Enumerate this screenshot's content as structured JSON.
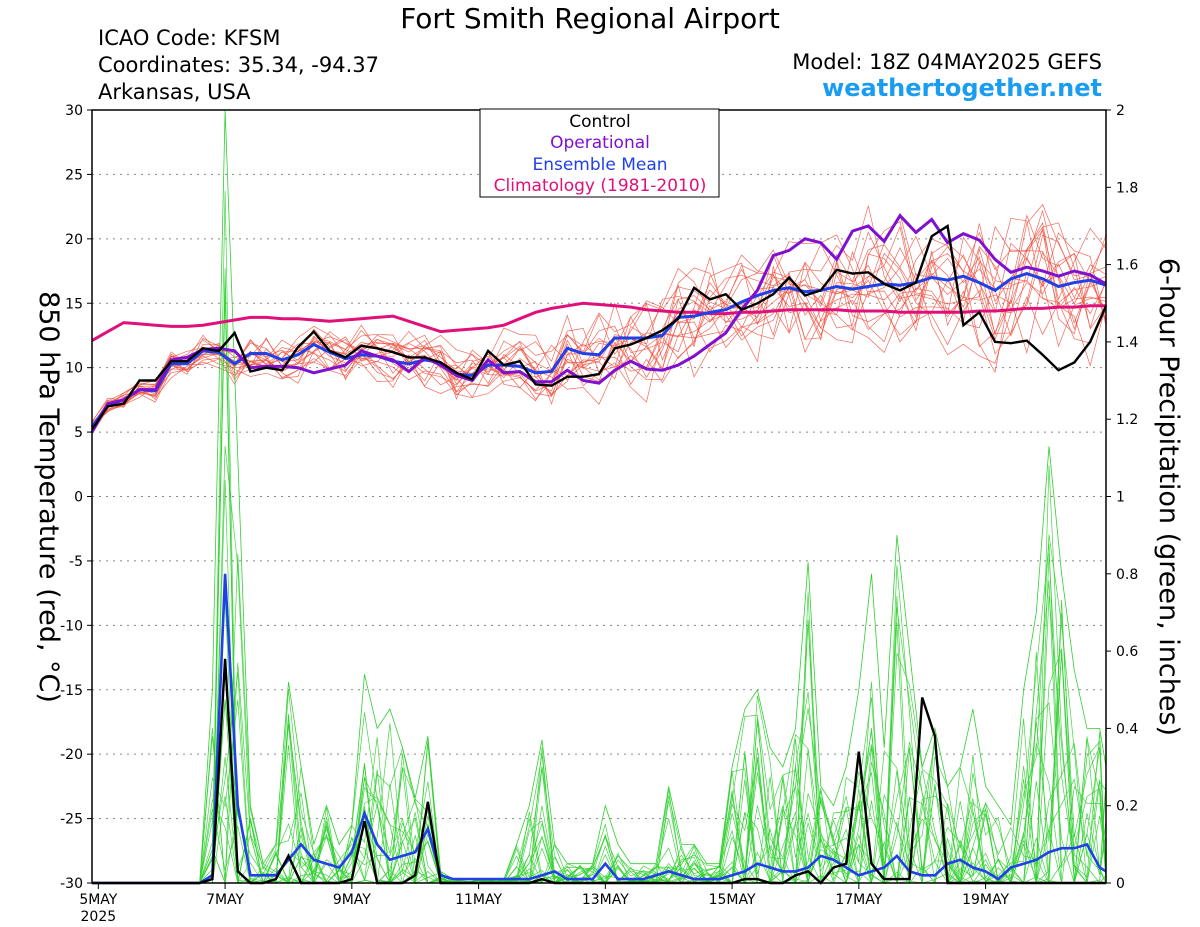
{
  "header": {
    "title": "Fort Smith Regional Airport",
    "icao": "ICAO Code: KFSM",
    "coordinates": "Coordinates: 35.34, -94.37",
    "region": "Arkansas, USA",
    "model": "Model: 18Z 04MAY2025 GEFS",
    "site": "weathertogether.net"
  },
  "chart_data": {
    "type": "line",
    "title": "Fort Smith Regional Airport",
    "xlabel": "",
    "ylabel": "850 hPa Temperature (red, °C)",
    "ylabel2": "6-hour Precipitation (green, inches)",
    "ylim": [
      -30,
      30
    ],
    "ylim2": [
      0,
      2
    ],
    "xlim": [
      4.9,
      20.9
    ],
    "x_unit": "day of May 2025",
    "yticks": [
      30,
      25,
      20,
      15,
      10,
      5,
      0,
      -5,
      -10,
      -15,
      -20,
      -25,
      -30
    ],
    "yticks2": [
      "2",
      "1.8",
      "1.6",
      "1.4",
      "1.2",
      "1",
      "0.8",
      "0.6",
      "0.4",
      "0.2",
      "0"
    ],
    "xticks": [
      {
        "x": 5,
        "label": "5MAY",
        "sub": "2025"
      },
      {
        "x": 7,
        "label": "7MAY",
        "sub": ""
      },
      {
        "x": 9,
        "label": "9MAY",
        "sub": ""
      },
      {
        "x": 11,
        "label": "11MAY",
        "sub": ""
      },
      {
        "x": 13,
        "label": "13MAY",
        "sub": ""
      },
      {
        "x": 15,
        "label": "15MAY",
        "sub": ""
      },
      {
        "x": 17,
        "label": "17MAY",
        "sub": ""
      },
      {
        "x": 19,
        "label": "19MAY",
        "sub": ""
      }
    ],
    "grid": "dotted horizontal",
    "legend": {
      "position": "top-center",
      "entries": [
        {
          "label": "Control",
          "color": "#000000"
        },
        {
          "label": "Operational",
          "color": "#8010d0"
        },
        {
          "label": "Ensemble Mean",
          "color": "#2040e8"
        },
        {
          "label": "Climatology (1981-2010)",
          "color": "#e0107a"
        }
      ]
    },
    "colors": {
      "control": "#000000",
      "operational": "#8010d0",
      "mean": "#2040e8",
      "climatology": "#e0107a",
      "members_temp": "#f05040",
      "members_precip": "#30d030"
    },
    "temperature": {
      "x": [
        4.9,
        5.15,
        5.4,
        5.65,
        5.9,
        6.15,
        6.4,
        6.65,
        6.9,
        7.15,
        7.4,
        7.65,
        7.9,
        8.15,
        8.4,
        8.65,
        8.9,
        9.15,
        9.4,
        9.65,
        9.9,
        10.15,
        10.4,
        10.65,
        10.9,
        11.15,
        11.4,
        11.65,
        11.9,
        12.15,
        12.4,
        12.65,
        12.9,
        13.15,
        13.4,
        13.65,
        13.9,
        14.15,
        14.4,
        14.65,
        14.9,
        15.15,
        15.4,
        15.65,
        15.9,
        16.15,
        16.4,
        16.65,
        16.9,
        17.15,
        17.4,
        17.65,
        17.9,
        18.15,
        18.4,
        18.65,
        18.9,
        19.15,
        19.4,
        19.65,
        19.9,
        20.15,
        20.4,
        20.65,
        20.9
      ],
      "control": [
        5.2,
        7.0,
        7.2,
        9.0,
        9.0,
        10.5,
        10.5,
        11.5,
        11.3,
        12.7,
        9.7,
        10.0,
        9.8,
        11.6,
        12.8,
        11.3,
        10.8,
        11.7,
        11.5,
        11.2,
        10.8,
        10.8,
        10.4,
        9.6,
        9.1,
        11.3,
        10.2,
        10.5,
        8.7,
        8.6,
        9.3,
        9.3,
        9.5,
        11.5,
        11.8,
        12.3,
        12.9,
        13.8,
        16.2,
        15.3,
        15.7,
        14.5,
        15.0,
        15.7,
        17.0,
        15.6,
        16.0,
        17.6,
        17.3,
        17.4,
        16.5,
        16.0,
        16.6,
        20.2,
        21.0,
        13.3,
        14.3,
        12.0,
        11.9,
        12.1,
        11.0,
        9.8,
        10.4,
        12.0,
        14.8
      ],
      "operational": [
        5.0,
        7.2,
        7.5,
        8.3,
        8.3,
        10.6,
        10.8,
        11.4,
        11.5,
        11.3,
        10.0,
        10.1,
        10.1,
        10.0,
        9.6,
        9.9,
        10.2,
        11.3,
        10.9,
        10.6,
        9.7,
        10.8,
        10.2,
        9.4,
        9.0,
        10.6,
        9.6,
        9.7,
        8.9,
        8.9,
        9.8,
        9.0,
        8.8,
        9.8,
        10.5,
        9.9,
        9.8,
        10.2,
        10.9,
        11.8,
        12.7,
        14.5,
        16.0,
        18.7,
        19.1,
        20.0,
        19.7,
        18.4,
        20.6,
        21.0,
        19.8,
        21.8,
        20.5,
        21.5,
        19.7,
        20.4,
        19.9,
        18.4,
        17.4,
        17.8,
        17.5,
        17.1,
        17.5,
        17.2,
        16.5
      ],
      "mean": [
        5.4,
        7.1,
        7.5,
        8.3,
        8.2,
        10.3,
        10.3,
        11.3,
        11.2,
        10.3,
        11.1,
        11.1,
        10.6,
        11.0,
        11.8,
        11.2,
        10.7,
        11.0,
        10.9,
        10.5,
        10.3,
        10.6,
        10.4,
        9.5,
        9.4,
        10.2,
        10.2,
        10.1,
        9.6,
        9.7,
        11.5,
        11.1,
        11.0,
        12.3,
        12.3,
        12.3,
        12.5,
        13.9,
        14.0,
        14.3,
        14.5,
        15.1,
        15.6,
        16.0,
        16.2,
        15.9,
        16.0,
        16.3,
        16.1,
        16.3,
        16.5,
        16.4,
        16.6,
        17.0,
        16.8,
        17.1,
        16.6,
        16.0,
        16.9,
        17.3,
        16.9,
        16.3,
        16.6,
        16.8,
        16.4
      ],
      "climatology": [
        12.1,
        12.8,
        13.5,
        13.4,
        13.3,
        13.2,
        13.2,
        13.3,
        13.5,
        13.7,
        13.9,
        13.9,
        13.8,
        13.8,
        13.7,
        13.6,
        13.7,
        13.8,
        13.9,
        14.0,
        13.6,
        13.2,
        12.8,
        12.9,
        13.0,
        13.1,
        13.3,
        13.8,
        14.3,
        14.6,
        14.8,
        15.0,
        14.9,
        14.8,
        14.7,
        14.5,
        14.4,
        14.3,
        14.3,
        14.2,
        14.2,
        14.3,
        14.3,
        14.4,
        14.5,
        14.5,
        14.5,
        14.5,
        14.4,
        14.4,
        14.4,
        14.3,
        14.3,
        14.3,
        14.3,
        14.3,
        14.4,
        14.4,
        14.5,
        14.6,
        14.6,
        14.7,
        14.7,
        14.8,
        14.8
      ]
    },
    "precipitation": {
      "x": [
        4.9,
        5.4,
        5.9,
        6.4,
        6.6,
        6.8,
        7.0,
        7.2,
        7.4,
        7.6,
        7.8,
        8.0,
        8.2,
        8.4,
        8.6,
        8.8,
        9.0,
        9.2,
        9.4,
        9.6,
        9.8,
        10.0,
        10.2,
        10.4,
        10.6,
        10.8,
        11.0,
        11.2,
        11.4,
        11.6,
        11.8,
        12.0,
        12.2,
        12.4,
        12.6,
        12.8,
        13.0,
        13.2,
        13.4,
        13.6,
        13.8,
        14.0,
        14.2,
        14.4,
        14.6,
        14.8,
        15.0,
        15.2,
        15.4,
        15.6,
        15.8,
        16.0,
        16.2,
        16.4,
        16.6,
        16.8,
        17.0,
        17.2,
        17.4,
        17.6,
        17.8,
        18.0,
        18.2,
        18.4,
        18.6,
        18.8,
        19.0,
        19.2,
        19.4,
        19.6,
        19.8,
        20.0,
        20.2,
        20.4,
        20.6,
        20.8,
        20.9
      ],
      "control": [
        0,
        0,
        0,
        0,
        0,
        0.01,
        0.58,
        0.03,
        0,
        0,
        0.01,
        0.07,
        0,
        0,
        0,
        0,
        0.01,
        0.16,
        0,
        0,
        0,
        0.02,
        0.21,
        0,
        0,
        0,
        0,
        0,
        0,
        0,
        0,
        0.01,
        0,
        0,
        0,
        0,
        0,
        0,
        0,
        0,
        0,
        0,
        0,
        0,
        0,
        0,
        0,
        0.01,
        0.01,
        0,
        0,
        0.02,
        0.03,
        0,
        0.04,
        0.05,
        0.34,
        0.05,
        0.01,
        0.01,
        0.01,
        0.48,
        0.38,
        0,
        0,
        0,
        0,
        0,
        0,
        0,
        0,
        0,
        0,
        0,
        0,
        0,
        0
      ],
      "mean": [
        0,
        0,
        0,
        0,
        0,
        0.02,
        0.8,
        0.2,
        0.02,
        0.02,
        0.02,
        0.06,
        0.1,
        0.06,
        0.05,
        0.04,
        0.08,
        0.18,
        0.1,
        0.06,
        0.07,
        0.08,
        0.14,
        0.02,
        0.01,
        0.01,
        0.01,
        0.01,
        0.01,
        0.01,
        0.01,
        0.02,
        0.03,
        0.01,
        0.01,
        0.01,
        0.05,
        0.01,
        0.01,
        0.01,
        0.02,
        0.03,
        0.02,
        0.01,
        0.01,
        0.01,
        0.02,
        0.03,
        0.05,
        0.04,
        0.03,
        0.03,
        0.04,
        0.07,
        0.06,
        0.04,
        0.02,
        0.03,
        0.04,
        0.07,
        0.03,
        0.02,
        0.02,
        0.05,
        0.06,
        0.04,
        0.03,
        0.01,
        0.04,
        0.05,
        0.06,
        0.08,
        0.09,
        0.09,
        0.1,
        0.04,
        0.03
      ],
      "ensemble_max": [
        0,
        0,
        0,
        0,
        0,
        0.5,
        2.0,
        1.1,
        0.2,
        0.05,
        0.1,
        0.52,
        0.3,
        0.1,
        0.2,
        0.1,
        0.15,
        0.54,
        0.4,
        0.45,
        0.35,
        0.22,
        0.38,
        0.03,
        0.01,
        0.01,
        0.01,
        0.01,
        0.01,
        0.1,
        0.2,
        0.37,
        0.1,
        0.05,
        0.05,
        0.05,
        0.2,
        0.1,
        0.05,
        0.05,
        0.05,
        0.25,
        0.1,
        0.1,
        0.05,
        0.05,
        0.3,
        0.45,
        0.5,
        0.35,
        0.3,
        0.4,
        0.83,
        0.25,
        0.2,
        0.3,
        0.5,
        0.8,
        0.35,
        0.9,
        0.6,
        0.3,
        0.4,
        0.25,
        0.3,
        0.45,
        0.25,
        0.2,
        0.15,
        0.5,
        0.7,
        1.13,
        0.8,
        0.55,
        0.4,
        0.4,
        0.3
      ]
    }
  }
}
